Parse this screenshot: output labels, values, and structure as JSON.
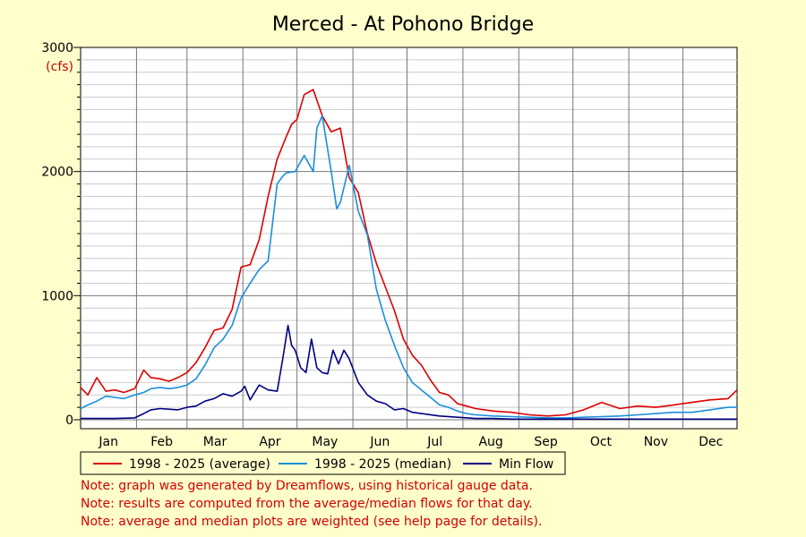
{
  "chart_data": {
    "type": "line",
    "title": "Merced - At Pohono Bridge",
    "unit_label": "(cfs)",
    "ylim": [
      0,
      3000
    ],
    "yticks": [
      "0",
      "1000",
      "2000",
      "3000"
    ],
    "months": [
      "Jan",
      "Feb",
      "Mar",
      "Apr",
      "May",
      "Jun",
      "Jul",
      "Aug",
      "Sep",
      "Oct",
      "Nov",
      "Dec"
    ],
    "grid": true,
    "legend_position": "bottom",
    "x_unit": "day of year",
    "series": [
      {
        "name": "1998 - 2025 (average)",
        "color": "#dd0000",
        "x": [
          1,
          5,
          10,
          15,
          20,
          25,
          31,
          36,
          40,
          45,
          50,
          55,
          60,
          65,
          70,
          75,
          80,
          85,
          90,
          95,
          100,
          105,
          110,
          115,
          118,
          121,
          125,
          130,
          135,
          140,
          145,
          150,
          155,
          160,
          165,
          170,
          175,
          180,
          185,
          190,
          195,
          200,
          205,
          210,
          215,
          220,
          230,
          240,
          250,
          260,
          270,
          280,
          290,
          300,
          310,
          320,
          330,
          340,
          350,
          360,
          365
        ],
        "values": [
          260,
          200,
          340,
          230,
          240,
          220,
          250,
          400,
          340,
          330,
          310,
          340,
          380,
          460,
          580,
          720,
          740,
          890,
          1230,
          1250,
          1450,
          1800,
          2100,
          2280,
          2380,
          2420,
          2620,
          2660,
          2450,
          2320,
          2350,
          1950,
          1830,
          1500,
          1260,
          1070,
          880,
          650,
          520,
          440,
          320,
          220,
          200,
          130,
          110,
          90,
          70,
          60,
          40,
          30,
          40,
          80,
          140,
          90,
          110,
          100,
          120,
          140,
          160,
          170,
          240
        ]
      },
      {
        "name": "1998 - 2025 (median)",
        "color": "#1a8fdd",
        "x": [
          1,
          5,
          10,
          15,
          20,
          25,
          31,
          36,
          40,
          45,
          50,
          55,
          60,
          65,
          70,
          75,
          80,
          85,
          90,
          95,
          100,
          105,
          110,
          113,
          115,
          120,
          125,
          130,
          132,
          135,
          140,
          143,
          145,
          150,
          155,
          160,
          165,
          170,
          175,
          180,
          185,
          190,
          195,
          200,
          205,
          210,
          215,
          220,
          230,
          240,
          250,
          260,
          270,
          280,
          290,
          300,
          310,
          320,
          330,
          340,
          350,
          360,
          365
        ],
        "values": [
          90,
          120,
          150,
          190,
          180,
          170,
          200,
          220,
          250,
          260,
          250,
          260,
          280,
          330,
          440,
          580,
          650,
          760,
          980,
          1100,
          1210,
          1280,
          1900,
          1960,
          1990,
          2000,
          2130,
          2000,
          2350,
          2450,
          2000,
          1700,
          1750,
          2050,
          1680,
          1490,
          1050,
          800,
          600,
          420,
          300,
          240,
          180,
          120,
          100,
          70,
          50,
          40,
          30,
          25,
          20,
          15,
          15,
          20,
          25,
          30,
          40,
          50,
          60,
          60,
          80,
          100,
          100
        ]
      },
      {
        "name": "Min Flow",
        "color": "#000080",
        "x": [
          1,
          10,
          20,
          31,
          36,
          40,
          45,
          50,
          55,
          60,
          65,
          70,
          75,
          80,
          85,
          90,
          92,
          95,
          100,
          105,
          110,
          113,
          116,
          118,
          120,
          123,
          126,
          129,
          132,
          135,
          138,
          141,
          144,
          147,
          150,
          155,
          160,
          165,
          170,
          175,
          180,
          185,
          190,
          200,
          210,
          220,
          230,
          240,
          250,
          260,
          270,
          280,
          290,
          300,
          310,
          320,
          330,
          340,
          350,
          360,
          365
        ],
        "values": [
          10,
          10,
          10,
          15,
          50,
          80,
          90,
          85,
          80,
          100,
          110,
          150,
          170,
          210,
          190,
          230,
          270,
          160,
          280,
          240,
          230,
          480,
          760,
          600,
          560,
          420,
          380,
          650,
          420,
          380,
          370,
          560,
          450,
          560,
          490,
          300,
          200,
          150,
          130,
          80,
          90,
          60,
          50,
          30,
          20,
          10,
          10,
          5,
          5,
          5,
          5,
          5,
          5,
          5,
          5,
          5,
          5,
          5,
          5,
          5,
          5
        ]
      }
    ]
  },
  "notes": [
    "Note: graph was generated by Dreamflows, using historical gauge data.",
    "Note: results are computed from the average/median flows for that day.",
    "Note: average and median plots are weighted (see help page for details)."
  ]
}
